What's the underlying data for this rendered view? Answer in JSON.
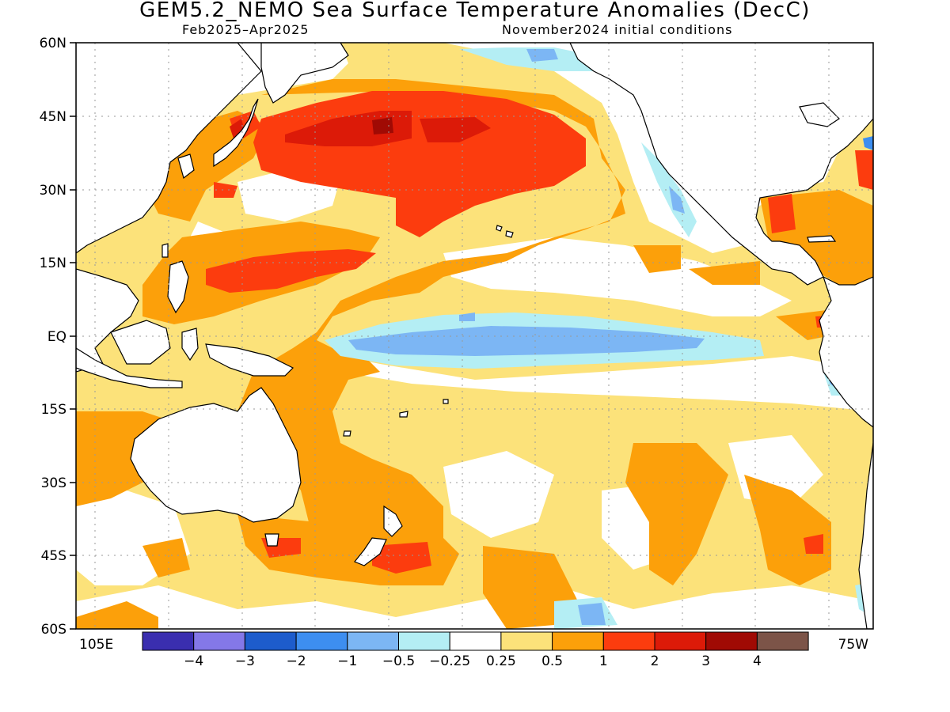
{
  "title": "GEM5.2_NEMO Sea Surface Temperature Anomalies (DecC)",
  "subtitle_left": "Feb2025–Apr2025",
  "subtitle_right": "November2024 initial conditions",
  "lat_labels": [
    "60N",
    "45N",
    "30N",
    "15N",
    "EQ",
    "15S",
    "30S",
    "45S",
    "60S"
  ],
  "lon_label_left": "105E",
  "lon_label_right": "75W",
  "colorbar": {
    "colors": [
      "#3a2eaf",
      "#8478e8",
      "#1d5ccc",
      "#3d8ef0",
      "#7cb6f4",
      "#b4eef4",
      "#ffffff",
      "#fce27a",
      "#fca00a",
      "#fc3c0e",
      "#dc1a08",
      "#a00a04",
      "#7c5448"
    ],
    "labels": [
      "−4",
      "−3",
      "−2",
      "−1",
      "−0.5",
      "−0.25",
      "0.25",
      "0.5",
      "1",
      "2",
      "3",
      "4"
    ]
  },
  "palette": {
    "land": "#ffffff",
    "ocean_default": "#fce27a",
    "cold_light": "#b4eef4",
    "cold_mid": "#7cb6f4",
    "cold_dark": "#3d8ef0",
    "warm_light": "#fce27a",
    "warm_mid": "#fca00a",
    "warm_strong": "#fc3c0e",
    "warm_deep": "#dc1a08",
    "warm_max": "#a00a04"
  }
}
